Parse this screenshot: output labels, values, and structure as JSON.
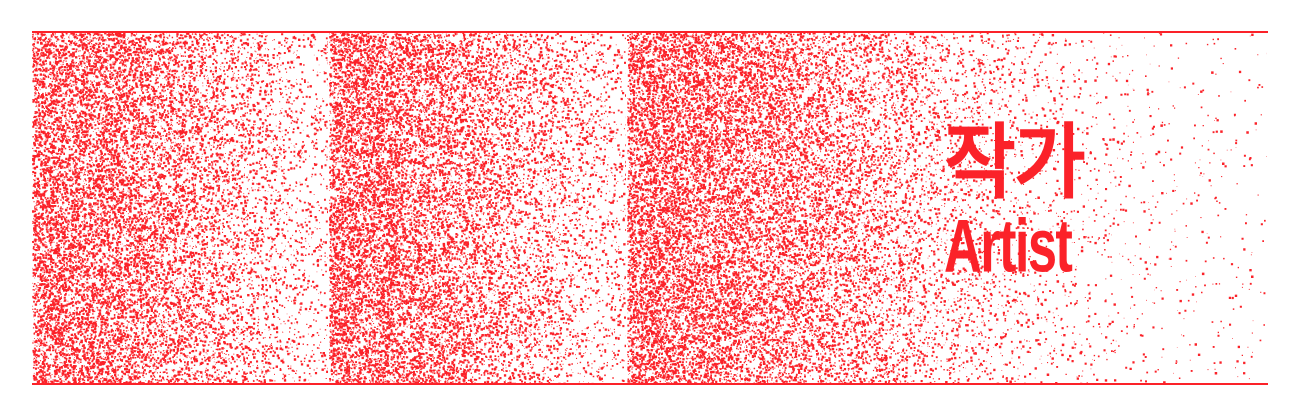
{
  "banner": {
    "title_korean": "작가",
    "title_english": "Artist"
  },
  "colors": {
    "accent": "#fb2229",
    "background": "#ffffff"
  },
  "texture": {
    "name": "red-speckle-gradient",
    "panel_count": 3
  }
}
